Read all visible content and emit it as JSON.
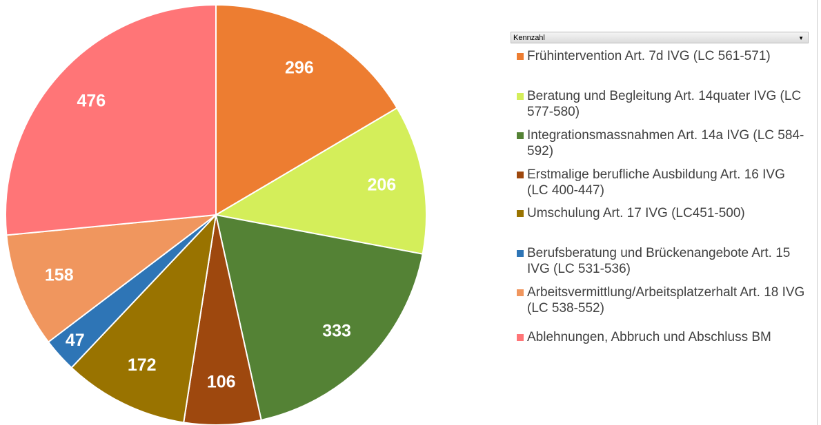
{
  "chart_data": {
    "type": "pie",
    "legend_title": "Kennzahl",
    "categories": [
      "Frühintervention Art. 7d IVG (LC 561-571)",
      "Beratung und Begleitung Art. 14quater IVG (LC 577-580)",
      "Integrationsmassnahmen Art. 14a IVG (LC 584-592)",
      "Erstmalige berufliche Ausbildung Art. 16 IVG (LC 400-447)",
      "Umschulung Art. 17 IVG (LC451-500)",
      "Berufsberatung und Brückenangebote Art. 15 IVG (LC 531-536)",
      "Arbeitsvermittlung/Arbeitsplatzerhalt Art. 18 IVG (LC 538-552)",
      "Ablehnungen, Abbruch und Abschluss BM"
    ],
    "values": [
      296,
      206,
      333,
      106,
      172,
      47,
      158,
      476
    ],
    "colors": [
      "#ED7D31",
      "#D4EE5A",
      "#548235",
      "#9E480E",
      "#997300",
      "#2E75B6",
      "#F0965E",
      "#FF7577"
    ]
  }
}
